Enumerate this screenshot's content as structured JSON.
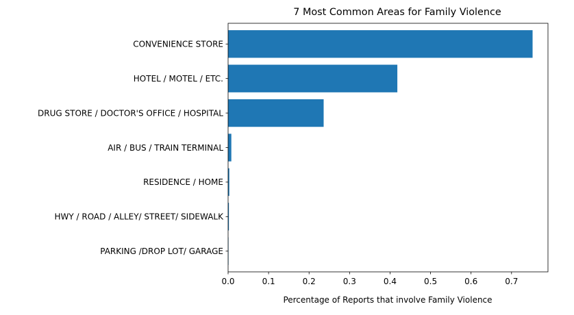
{
  "chart_data": {
    "type": "bar",
    "orientation": "horizontal",
    "title": "7 Most Common Areas for Family Violence",
    "xlabel": "Percentage of Reports that involve Family Violence",
    "ylabel": "",
    "categories": [
      "CONVENIENCE STORE",
      "HOTEL / MOTEL / ETC.",
      "DRUG STORE / DOCTOR'S OFFICE / HOSPITAL",
      "AIR / BUS / TRAIN TERMINAL",
      "RESIDENCE / HOME",
      "HWY / ROAD / ALLEY/ STREET/ SIDEWALK",
      "PARKING /DROP LOT/ GARAGE"
    ],
    "values": [
      0.752,
      0.418,
      0.236,
      0.008,
      0.003,
      0.002,
      0.001
    ],
    "xlim": [
      0,
      0.79
    ],
    "xticks": [
      0,
      0.1,
      0.2,
      0.3,
      0.4,
      0.5,
      0.6,
      0.7
    ],
    "xtick_labels": [
      "0.0",
      "0.1",
      "0.2",
      "0.3",
      "0.4",
      "0.5",
      "0.6",
      "0.7"
    ],
    "bar_color": "#1f77b4",
    "grid": false,
    "legend": "none"
  }
}
